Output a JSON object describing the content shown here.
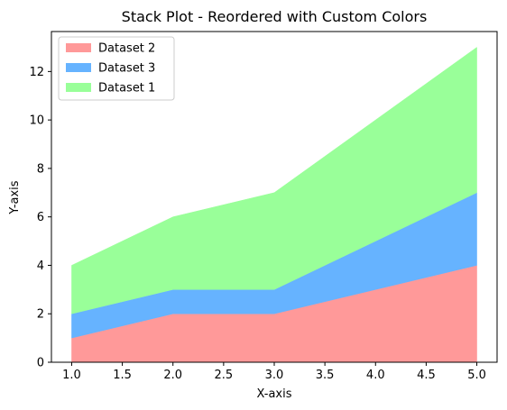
{
  "chart_data": {
    "type": "area",
    "stacked": true,
    "title": "Stack Plot - Reordered with Custom Colors",
    "xlabel": "X-axis",
    "ylabel": "Y-axis",
    "x": [
      1,
      2,
      3,
      4,
      5
    ],
    "xlim": [
      0.8,
      5.2
    ],
    "ylim": [
      0,
      13.65
    ],
    "x_ticks": [
      "1.0",
      "1.5",
      "2.0",
      "2.5",
      "3.0",
      "3.5",
      "4.0",
      "4.5",
      "5.0"
    ],
    "y_ticks": [
      "0",
      "2",
      "4",
      "6",
      "8",
      "10",
      "12"
    ],
    "grid": false,
    "legend_position": "upper-left",
    "series": [
      {
        "name": "Dataset 2",
        "values": [
          1,
          2,
          2,
          3,
          4
        ],
        "color": "#ff9999"
      },
      {
        "name": "Dataset 3",
        "values": [
          1,
          1,
          1,
          2,
          3
        ],
        "color": "#66b3ff"
      },
      {
        "name": "Dataset 1",
        "values": [
          2,
          3,
          4,
          5,
          6
        ],
        "color": "#99ff99"
      }
    ]
  }
}
